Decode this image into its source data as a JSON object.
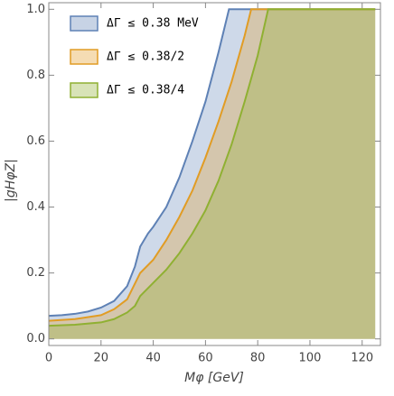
{
  "chart_data": {
    "type": "area",
    "x_label": "Mφ [GeV]",
    "y_label": "|gHφZ|",
    "xlim": [
      0,
      127
    ],
    "ylim": [
      -0.02,
      1.02
    ],
    "xticks": [
      0,
      20,
      40,
      60,
      80,
      100,
      120
    ],
    "yticks": [
      {
        "value": 0,
        "label": "0.0"
      },
      0.2,
      0.4,
      0.6,
      0.8,
      {
        "value": 1,
        "label": "1.0"
      }
    ],
    "legend": "upper-left",
    "series": [
      {
        "name": "ΔΓ ≤ 0.38 MeV",
        "color": "#5e81b5",
        "x": [
          0,
          5,
          10,
          15,
          20,
          25,
          30,
          33,
          35,
          38,
          40,
          45,
          50,
          55,
          60,
          65,
          69,
          125
        ],
        "values": [
          0.07,
          0.072,
          0.076,
          0.083,
          0.095,
          0.115,
          0.16,
          0.22,
          0.28,
          0.32,
          0.34,
          0.4,
          0.49,
          0.6,
          0.72,
          0.87,
          1.0,
          1.0
        ]
      },
      {
        "name": "ΔΓ ≤ 0.38/2",
        "color": "#e19c24",
        "x": [
          0,
          10,
          20,
          25,
          30,
          35,
          40,
          45,
          50,
          55,
          60,
          65,
          70,
          75,
          77.5,
          125
        ],
        "values": [
          0.055,
          0.06,
          0.072,
          0.09,
          0.12,
          0.2,
          0.24,
          0.3,
          0.37,
          0.45,
          0.55,
          0.66,
          0.78,
          0.92,
          1.0,
          1.0
        ]
      },
      {
        "name": "ΔΓ ≤ 0.38/4",
        "color": "#8fb032",
        "x": [
          0,
          10,
          20,
          25,
          30,
          33,
          35,
          40,
          45,
          50,
          55,
          60,
          65,
          70,
          75,
          80,
          84,
          125
        ],
        "values": [
          0.04,
          0.043,
          0.05,
          0.06,
          0.08,
          0.1,
          0.13,
          0.17,
          0.21,
          0.26,
          0.32,
          0.39,
          0.48,
          0.59,
          0.72,
          0.86,
          1.0,
          1.0
        ]
      }
    ]
  }
}
